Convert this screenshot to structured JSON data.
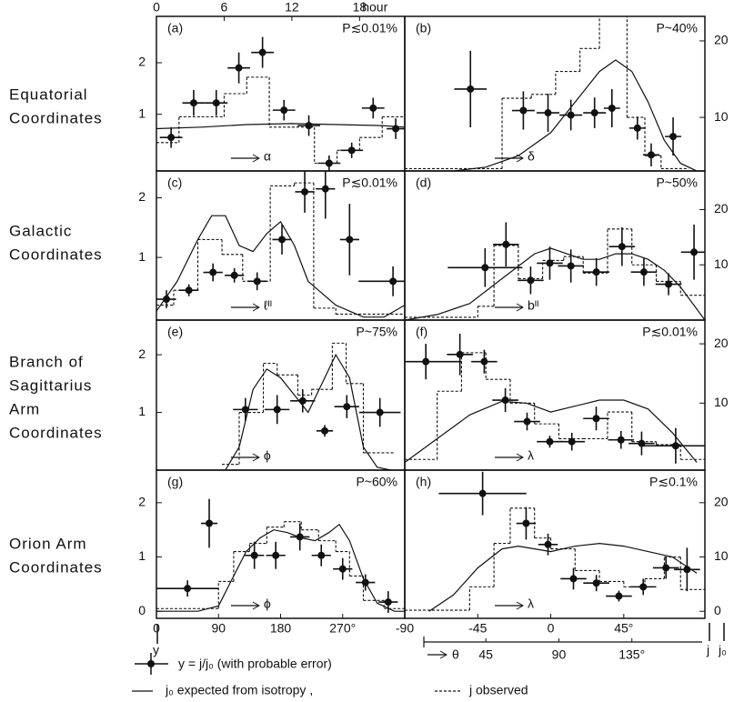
{
  "row_labels": [
    [
      "Equatorial",
      "Coordinates"
    ],
    [
      "Galactic",
      "Coordinates"
    ],
    [
      "Branch  of",
      "Sagittarius",
      "Arm",
      "Coordinates"
    ],
    [
      "Orion  Arm",
      "Coordinates"
    ]
  ],
  "chart_data": [
    {
      "type": "scatter",
      "panel": "(a)",
      "probability": "P≲0.01%",
      "x_label": "α",
      "top_xticks": [
        0,
        6,
        12,
        18
      ],
      "top_x_label": "hour",
      "xlim": [
        0,
        22
      ],
      "ylim": [
        -0.1,
        2.9
      ],
      "yticks": [
        1,
        2
      ],
      "x": [
        1.3,
        3.3,
        5.3,
        7.3,
        9.4,
        11.3,
        13.5,
        15.3,
        17.3,
        19.2,
        21.2
      ],
      "values": [
        0.55,
        1.22,
        1.22,
        1.9,
        2.2,
        1.08,
        0.78,
        0.05,
        0.3,
        1.12,
        0.72
      ],
      "x_error": [
        1,
        1,
        1,
        1,
        1,
        1,
        1,
        1,
        1,
        1,
        0.8
      ],
      "y_error": [
        0.2,
        0.25,
        0.25,
        0.3,
        0.3,
        0.2,
        0.2,
        0.15,
        0.15,
        0.2,
        0.2
      ],
      "observed_bins": [
        0,
        2,
        4,
        6,
        8,
        10,
        12,
        14,
        16,
        18,
        20,
        22
      ],
      "observed": [
        0.45,
        0.95,
        0.95,
        1.4,
        1.72,
        0.75,
        0.75,
        0.05,
        0.3,
        0.55,
        0.95
      ],
      "expected_x": [
        0,
        4,
        8,
        12,
        16,
        20,
        22
      ],
      "expected": [
        0.72,
        0.75,
        0.8,
        0.82,
        0.8,
        0.78,
        0.75
      ]
    },
    {
      "type": "scatter",
      "panel": "(b)",
      "probability": "P~40%",
      "x_label": "δ",
      "xlim": [
        -90,
        95
      ],
      "y2lim": [
        3,
        23.2
      ],
      "y2ticks": [
        10,
        20
      ],
      "x": [
        -49.5,
        -16.9,
        -1.7,
        12.4,
        27,
        37.7,
        53.4,
        61.9,
        75.4
      ],
      "values": [
        13.7,
        10.9,
        10.6,
        10.3,
        10.6,
        11.2,
        8.6,
        5.1,
        7.5
      ],
      "x_error": [
        10,
        7,
        7,
        7,
        7,
        5,
        5,
        5,
        5
      ],
      "y_error": [
        5,
        2.5,
        2.5,
        2,
        2,
        2.5,
        1.5,
        1.5,
        2.5
      ],
      "observed_bins": [
        -90,
        -30,
        -12,
        3,
        18,
        30,
        47,
        58,
        68,
        85
      ],
      "observed": [
        3.3,
        12.5,
        13,
        16,
        19,
        24,
        10,
        5,
        3.3
      ],
      "expected_x": [
        -60,
        -40,
        -20,
        0,
        15,
        30,
        40,
        50,
        60,
        70,
        80,
        90
      ],
      "expected": [
        3,
        3.5,
        5,
        8,
        12,
        16,
        17.5,
        16,
        12,
        7,
        4,
        3
      ]
    },
    {
      "type": "scatter",
      "panel": "(c)",
      "probability": "P≲0.01%",
      "x_label": "ℓᴵᴵ",
      "xlim": [
        0,
        360
      ],
      "ylim": [
        -0.05,
        2.45
      ],
      "yticks": [
        1,
        2
      ],
      "x": [
        14.5,
        47,
        82,
        113,
        146,
        182,
        215,
        245,
        280,
        343
      ],
      "values": [
        0.3,
        0.45,
        0.75,
        0.7,
        0.6,
        1.3,
        2.1,
        2.15,
        1.3,
        0.6
      ],
      "x_error": [
        14,
        14,
        14,
        14,
        14,
        14,
        14,
        14,
        14,
        50
      ],
      "y_error": [
        0.15,
        0.1,
        0.15,
        0.12,
        0.15,
        0.25,
        0.35,
        0.5,
        0.6,
        0.25
      ],
      "observed_bins": [
        0,
        25,
        60,
        95,
        125,
        165,
        200,
        228,
        260,
        300,
        360
      ],
      "observed": [
        0.2,
        0.45,
        1.3,
        1.05,
        0.6,
        2.2,
        2.25,
        0.15,
        0.05,
        0.05
      ],
      "expected_x": [
        0,
        30,
        60,
        80,
        100,
        120,
        140,
        160,
        180,
        200,
        220,
        260,
        300,
        330,
        360
      ],
      "expected": [
        0.1,
        0.6,
        1.3,
        1.7,
        1.7,
        1.2,
        1.1,
        1.4,
        1.6,
        1.2,
        0.6,
        0.2,
        0,
        0,
        0.2
      ]
    },
    {
      "type": "scatter",
      "panel": "(d)",
      "probability": "P~50%",
      "x_label": "bᴵᴵ",
      "xlim": [
        -90,
        95
      ],
      "y2lim": [
        0,
        27
      ],
      "y2ticks": [
        10,
        20
      ],
      "x": [
        -40.5,
        -27.6,
        -12.4,
        -0.6,
        12.4,
        28.1,
        43.9,
        57.4,
        72.6,
        88.3
      ],
      "values": [
        9.5,
        13.7,
        7.2,
        10.3,
        9.8,
        8.7,
        13.3,
        8.7,
        6.5,
        12.3
      ],
      "x_error": [
        23,
        8,
        8,
        8,
        8,
        8,
        8,
        8,
        8,
        8
      ],
      "y_error": [
        3.5,
        4,
        2.5,
        3,
        3,
        2.5,
        3.5,
        2.5,
        2,
        5
      ],
      "observed_bins": [
        -90,
        -45,
        -35,
        -20,
        -5,
        8,
        20,
        35,
        50,
        65,
        80,
        95
      ],
      "observed": [
        0.5,
        2.5,
        13.5,
        7.5,
        10.8,
        11.5,
        8.5,
        16.5,
        10,
        7,
        4.5
      ],
      "expected_x": [
        -90,
        -70,
        -50,
        -30,
        -10,
        0,
        10,
        20,
        30,
        40,
        50,
        60,
        70,
        80,
        95
      ],
      "expected": [
        0,
        1,
        3,
        7.5,
        12,
        13,
        12,
        11,
        11,
        12,
        12,
        11,
        9,
        6,
        0
      ]
    },
    {
      "type": "scatter",
      "panel": "(e)",
      "probability": "P~75%",
      "x_label": "ϕ",
      "xlim": [
        0,
        360
      ],
      "ylim": [
        0,
        2.6
      ],
      "yticks": [
        1,
        2
      ],
      "x": [
        129,
        175,
        212,
        244,
        276,
        324
      ],
      "values": [
        1.05,
        1.05,
        1.2,
        0.68,
        1.1,
        1.0
      ],
      "x_error": [
        18,
        18,
        18,
        12,
        18,
        30
      ],
      "y_error": [
        0.2,
        0.25,
        0.2,
        0.1,
        0.2,
        0.25
      ],
      "observed_bins": [
        95,
        120,
        155,
        175,
        205,
        225,
        255,
        275,
        300,
        345
      ],
      "observed": [
        0.1,
        1.0,
        1.85,
        1.65,
        1.3,
        1.4,
        2.2,
        1.5,
        0.3
      ],
      "expected_x": [
        100,
        120,
        140,
        160,
        180,
        200,
        220,
        240,
        260,
        280,
        300,
        320,
        340
      ],
      "expected": [
        0,
        0.4,
        1.4,
        1.75,
        1.6,
        1.3,
        1.0,
        1.5,
        2.0,
        1.6,
        0.4,
        0.05,
        0
      ]
    },
    {
      "type": "scatter",
      "panel": "(f)",
      "probability": "P≲0.01%",
      "x_label": "λ",
      "xlim": [
        -90,
        95
      ],
      "y2lim": [
        -1.3,
        24
      ],
      "y2ticks": [
        10,
        20
      ],
      "x": [
        -77,
        -56,
        -41,
        -28,
        -14.6,
        -0.6,
        13,
        28,
        43.3,
        56,
        77
      ],
      "values": [
        17,
        18.2,
        17,
        10.5,
        6.9,
        3.5,
        3.5,
        7.4,
        3.8,
        3.2,
        2.8
      ],
      "x_error": [
        22,
        8,
        8,
        8,
        8,
        8,
        8,
        8,
        8,
        8,
        22
      ],
      "y_error": [
        3,
        3.5,
        2,
        2,
        1.5,
        1,
        1.5,
        2,
        1.5,
        2,
        3
      ],
      "observed_bins": [
        -90,
        -70,
        -55,
        -40,
        -25,
        -10,
        5,
        20,
        35,
        50,
        65,
        80,
        95
      ],
      "observed": [
        0.5,
        12,
        18.5,
        14,
        10,
        6.5,
        4,
        4,
        8.5,
        3.5,
        3,
        0.5
      ],
      "expected_x": [
        -90,
        -70,
        -50,
        -30,
        -15,
        0,
        15,
        30,
        45,
        60,
        75,
        90
      ],
      "expected": [
        0,
        4,
        8,
        10.3,
        10,
        8.5,
        9.5,
        10.5,
        10.5,
        9,
        5,
        0
      ]
    },
    {
      "type": "scatter",
      "panel": "(g)",
      "probability": "P~60%",
      "x_label": "ϕ",
      "xlim": [
        0,
        360
      ],
      "ylim": [
        -0.13,
        2.6
      ],
      "yticks": [
        0,
        1,
        2
      ],
      "xticks": [
        0,
        90,
        180,
        {
          "value": 270,
          "label": "270°"
        }
      ],
      "x": [
        45,
        76.5,
        142,
        173,
        208,
        239,
        270,
        303,
        336
      ],
      "values": [
        0.42,
        1.62,
        1.03,
        1.03,
        1.37,
        1.03,
        0.78,
        0.53,
        0.17
      ],
      "x_error": [
        45,
        12,
        14,
        14,
        14,
        14,
        14,
        14,
        14
      ],
      "y_error": [
        0.15,
        0.45,
        0.25,
        0.25,
        0.25,
        0.2,
        0.2,
        0.15,
        0.2
      ],
      "observed_bins": [
        0,
        90,
        112,
        135,
        160,
        185,
        210,
        235,
        260,
        280,
        300,
        330,
        360
      ],
      "observed": [
        0.05,
        0.55,
        1.1,
        1.25,
        1.55,
        1.65,
        1.5,
        1.3,
        1.1,
        0.65,
        0.2,
        0.05
      ],
      "expected_x": [
        0,
        60,
        90,
        110,
        130,
        150,
        170,
        190,
        210,
        230,
        250,
        265,
        280,
        300,
        320,
        345,
        360
      ],
      "expected": [
        0,
        0,
        0.1,
        0.6,
        1.1,
        1.35,
        1.5,
        1.45,
        1.35,
        1.3,
        1.45,
        1.6,
        1.3,
        0.6,
        0.15,
        0,
        0
      ]
    },
    {
      "type": "scatter",
      "panel": "(h)",
      "probability": "P≲0.1%",
      "x_label": "λ",
      "xlim": [
        -90,
        95
      ],
      "y2lim": [
        -1.3,
        26
      ],
      "y2ticks": [
        0,
        10,
        20
      ],
      "xticks": [
        -90,
        -45,
        0,
        {
          "value": 45,
          "label": "45°"
        }
      ],
      "x": [
        -42,
        -15.2,
        -1.7,
        14,
        28.1,
        42,
        57,
        71,
        84
      ],
      "values": [
        21.7,
        16.2,
        12.3,
        6,
        5.2,
        2.8,
        4.5,
        8,
        7.7
      ],
      "x_error": [
        27,
        6,
        6,
        8,
        8,
        8,
        8,
        8,
        8
      ],
      "y_error": [
        4,
        3,
        2,
        2,
        1.5,
        1,
        1.5,
        2,
        4
      ],
      "observed_bins": [
        -90,
        -50,
        -35,
        -25,
        -10,
        0,
        15,
        30,
        45,
        58,
        70,
        80,
        95
      ],
      "observed": [
        0.2,
        4.5,
        12.5,
        19,
        13.5,
        11.5,
        7.5,
        5.5,
        4.5,
        6,
        10,
        4
      ],
      "expected_x": [
        -75,
        -60,
        -45,
        -30,
        -20,
        -10,
        0,
        15,
        30,
        45,
        60,
        75,
        90
      ],
      "expected": [
        0,
        3,
        8,
        11.5,
        12,
        11.5,
        11,
        12,
        12.5,
        12,
        11,
        10,
        7
      ]
    }
  ],
  "theta_axis": {
    "label": "θ",
    "lim": [
      -5,
      180
    ],
    "ticks": [
      45,
      90,
      {
        "value": 135,
        "label": "135°"
      }
    ]
  },
  "y_symbol": "y",
  "j_symbol": "j",
  "j0_symbol": "j₀",
  "legend": {
    "points": "y = j/j₀  (with probable error)",
    "expected": "j₀   expected from isotropy ,",
    "observed": "j   observed"
  }
}
